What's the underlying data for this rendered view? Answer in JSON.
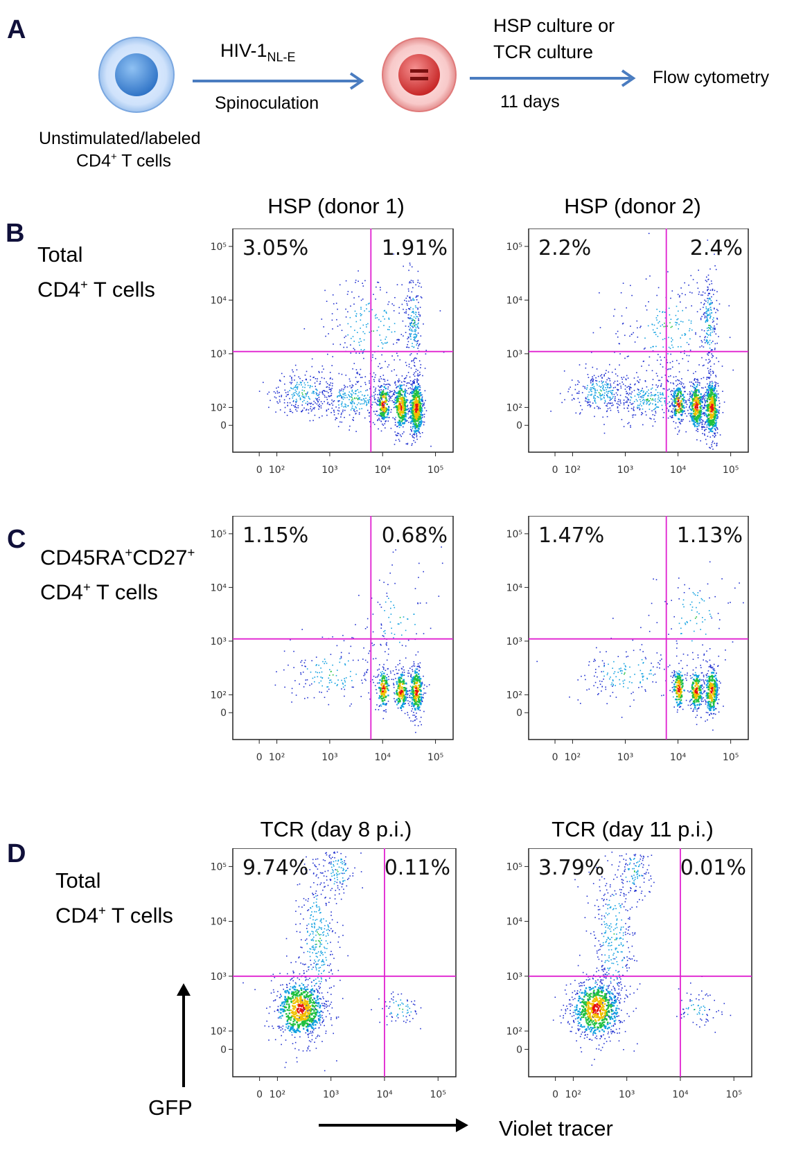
{
  "panel_letters": {
    "a": "A",
    "b": "B",
    "c": "C",
    "d": "D"
  },
  "schema": {
    "virus_label": "HIV-1",
    "virus_subscript": "NL-E",
    "step1_method": "Spinoculation",
    "culture_line1": "HSP culture or",
    "culture_line2": "TCR culture",
    "duration": "11 days",
    "readout": "Flow cytometry",
    "cells_line1": "Unstimulated/labeled",
    "cells_line2_prefix": "CD4",
    "cells_line2_sup": "+",
    "cells_line2_suffix": " T cells"
  },
  "row_labels": {
    "b_line1": "Total",
    "b_line2_prefix": "CD4",
    "b_line2_sup": "+",
    "b_line2_suffix": " T cells",
    "c_line1_part1": "CD45RA",
    "c_line1_sup1": "+",
    "c_line1_part2": "CD27",
    "c_line1_sup2": "+",
    "c_line2_prefix": "CD4",
    "c_line2_sup": "+",
    "c_line2_suffix": " T cells",
    "d_line1": "Total",
    "d_line2_prefix": "CD4",
    "d_line2_sup": "+",
    "d_line2_suffix": " T cells"
  },
  "axes": {
    "y_label": "GFP",
    "x_label": "Violet tracer",
    "tick_labels": [
      "0",
      "10²",
      "10³",
      "10⁴",
      "10⁵"
    ]
  },
  "chart_data": [
    {
      "type": "scatter",
      "title": "HSP (donor 1)",
      "row": "B",
      "xlabel": "Violet tracer",
      "ylabel": "GFP",
      "xscale": "biexponential",
      "yscale": "biexponential",
      "quadrants": {
        "upper_left": "3.05%",
        "upper_right": "1.91%"
      },
      "gate_x": 6000,
      "gate_y": 1100
    },
    {
      "type": "scatter",
      "title": "HSP (donor 2)",
      "row": "B",
      "xlabel": "Violet tracer",
      "ylabel": "GFP",
      "xscale": "biexponential",
      "yscale": "biexponential",
      "quadrants": {
        "upper_left": "2.2%",
        "upper_right": "2.4%"
      },
      "gate_x": 6000,
      "gate_y": 1100
    },
    {
      "type": "scatter",
      "title": "",
      "row": "C",
      "xlabel": "Violet tracer",
      "ylabel": "GFP",
      "xscale": "biexponential",
      "yscale": "biexponential",
      "quadrants": {
        "upper_left": "1.15%",
        "upper_right": "0.68%"
      },
      "gate_x": 6000,
      "gate_y": 1100
    },
    {
      "type": "scatter",
      "title": "",
      "row": "C",
      "xlabel": "Violet tracer",
      "ylabel": "GFP",
      "xscale": "biexponential",
      "yscale": "biexponential",
      "quadrants": {
        "upper_left": "1.47%",
        "upper_right": "1.13%"
      },
      "gate_x": 6000,
      "gate_y": 1100
    },
    {
      "type": "scatter",
      "title": "TCR (day 8 p.i.)",
      "row": "D",
      "xlabel": "Violet tracer",
      "ylabel": "GFP",
      "xscale": "biexponential",
      "yscale": "biexponential",
      "quadrants": {
        "upper_left": "9.74%",
        "upper_right": "0.11%"
      },
      "gate_x": 10000,
      "gate_y": 1000
    },
    {
      "type": "scatter",
      "title": "TCR (day 11 p.i.)",
      "row": "D",
      "xlabel": "Violet tracer",
      "ylabel": "GFP",
      "xscale": "biexponential",
      "yscale": "biexponential",
      "quadrants": {
        "upper_left": "3.79%",
        "upper_right": "0.01%"
      },
      "gate_x": 10000,
      "gate_y": 1000
    }
  ]
}
